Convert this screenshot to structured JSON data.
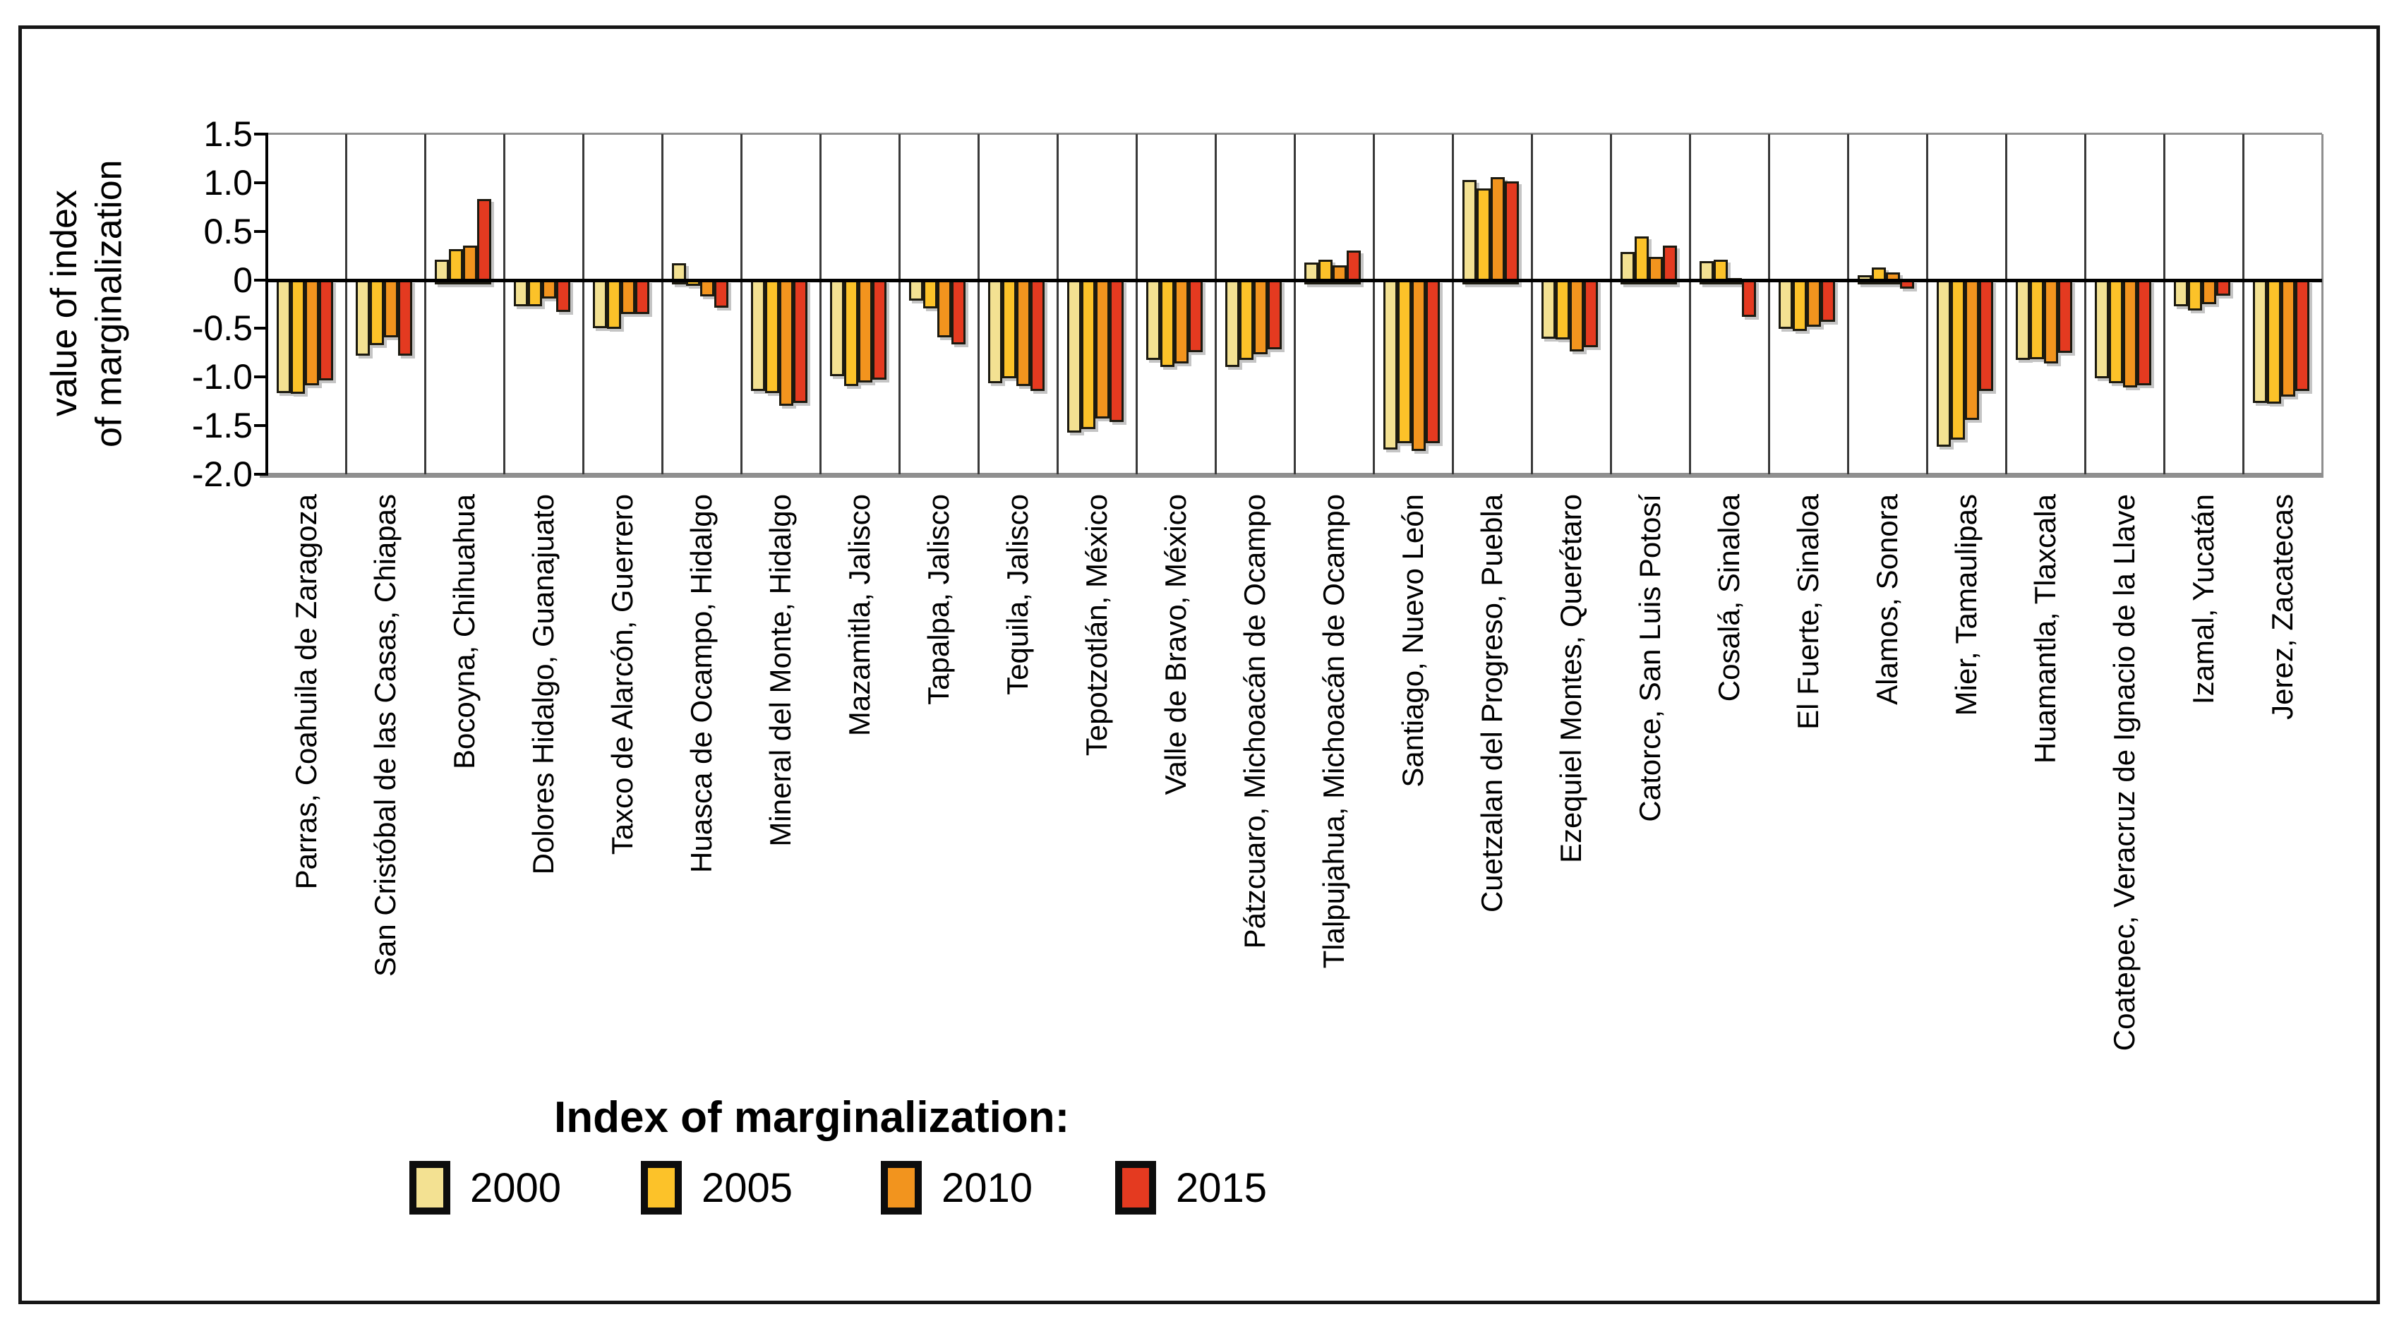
{
  "figure": {
    "ylabel_line1": "value of index",
    "ylabel_line2": "of marginalization"
  },
  "legend": {
    "title": "Index of marginalization:"
  },
  "chart_data": {
    "type": "bar",
    "title": "",
    "xlabel": "",
    "ylabel": "value of index of marginalization",
    "ylim": [
      -2.0,
      1.5
    ],
    "grid": "off",
    "legend_position": "bottom-left",
    "ytick_labels": [
      "1.5",
      "1.0",
      "0.5",
      "0",
      "-0.5",
      "-1.0",
      "-1.5",
      "-2.0"
    ],
    "ytick_values": [
      1.5,
      1.0,
      0.5,
      0,
      -0.5,
      -1.0,
      -1.5,
      -2.0
    ],
    "categories": [
      "Parras, Coahuila de Zaragoza",
      "San Cristóbal de las Casas, Chiapas",
      "Bocoyna, Chihuahua",
      "Dolores Hidalgo, Guanajuato",
      "Taxco de Alarcón, Guerrero",
      "Huasca de Ocampo, Hidalgo",
      "Mineral del Monte, Hidalgo",
      "Mazamitla, Jalisco",
      "Tapalpa, Jalisco",
      "Tequila, Jalisco",
      "Tepotzotlán, México",
      "Valle de Bravo, México",
      "Pátzcuaro, Michoacán de Ocampo",
      "Tlalpujahua, Michoacán de Ocampo",
      "Santiago, Nuevo León",
      "Cuetzalan del Progreso, Puebla",
      "Ezequiel Montes, Querétaro",
      "Catorce, San Luis Potosí",
      "Cosalá, Sinaloa",
      "El Fuerte, Sinaloa",
      "Alamos, Sonora",
      "Mier, Tamaulipas",
      "Huamantla, Tlaxcala",
      "Coatepec, Veracruz de Ignacio de la Llave",
      "Izamal, Yucatán",
      "Jerez, Zacatecas"
    ],
    "series": [
      {
        "name": "2000",
        "color": "#F3E192",
        "values": [
          -1.12,
          -0.74,
          0.21,
          -0.23,
          -0.45,
          0.17,
          -1.1,
          -0.95,
          -0.17,
          -1.02,
          -1.53,
          -0.78,
          -0.85,
          0.18,
          -1.7,
          1.03,
          -0.56,
          0.29,
          0.19,
          -0.46,
          0.05,
          -1.67,
          -0.78,
          -0.97,
          -0.23,
          -1.22
        ]
      },
      {
        "name": "2005",
        "color": "#FCC229",
        "values": [
          -1.13,
          -0.63,
          0.32,
          -0.23,
          -0.46,
          -0.02,
          -1.12,
          -1.05,
          -0.25,
          -0.97,
          -1.49,
          -0.85,
          -0.78,
          0.21,
          -1.64,
          0.94,
          -0.57,
          0.45,
          0.21,
          -0.48,
          0.13,
          -1.6,
          -0.77,
          -1.02,
          -0.27,
          -1.23
        ]
      },
      {
        "name": "2010",
        "color": "#F2941E",
        "values": [
          -1.04,
          -0.55,
          0.35,
          -0.15,
          -0.31,
          -0.13,
          -1.25,
          -1.01,
          -0.55,
          -1.05,
          -1.38,
          -0.82,
          -0.72,
          0.15,
          -1.72,
          1.06,
          -0.69,
          0.24,
          0.02,
          -0.44,
          0.08,
          -1.4,
          -0.82,
          -1.06,
          -0.21,
          -1.16
        ]
      },
      {
        "name": "2015",
        "color": "#E43A20",
        "values": [
          -0.99,
          -0.74,
          0.83,
          -0.29,
          -0.31,
          -0.24,
          -1.22,
          -0.98,
          -0.62,
          -1.1,
          -1.42,
          -0.7,
          -0.67,
          0.3,
          -1.64,
          1.01,
          -0.65,
          0.35,
          -0.34,
          -0.39,
          -0.05,
          -1.1,
          -0.71,
          -1.04,
          -0.12,
          -1.1
        ]
      }
    ],
    "style_colors": {
      "bar_border": "#1c1a10",
      "plot_frame": "#8f8f8f",
      "group_separator": "#3a3a3a",
      "zero_line": "#000000",
      "outer_border": "#161616"
    }
  }
}
